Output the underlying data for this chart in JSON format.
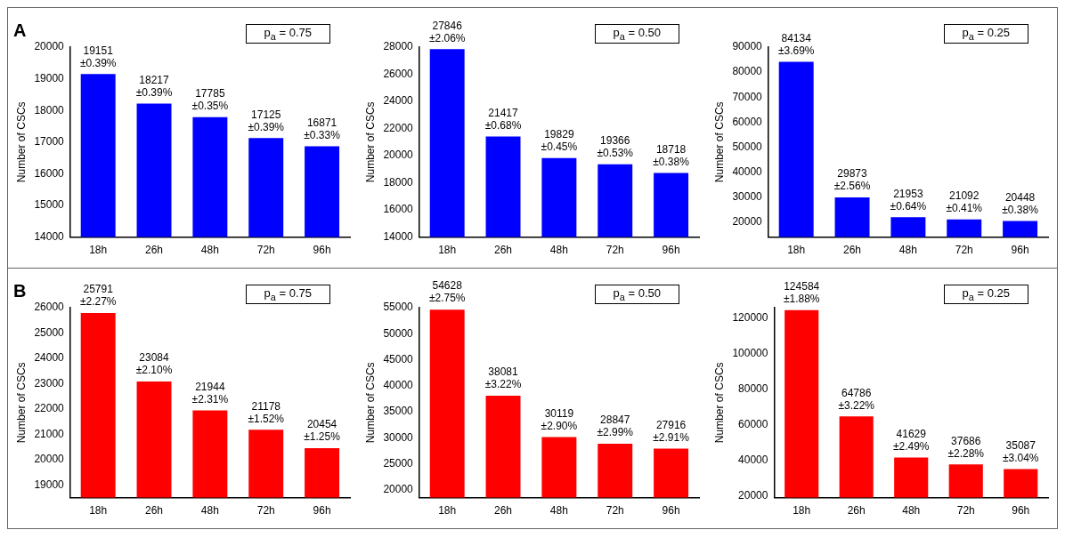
{
  "chart_data": [
    {
      "type": "bar",
      "title": "A",
      "ylabel": "Number of CSCs",
      "categories": [
        "18h",
        "26h",
        "48h",
        "72h",
        "96h"
      ],
      "values": [
        19151,
        18217,
        17785,
        17125,
        16871
      ],
      "color": "#0000ff",
      "ylim": [
        14000,
        20000
      ],
      "yticks": [
        14000,
        15000,
        16000,
        17000,
        18000,
        19000,
        20000
      ],
      "grid": false,
      "legend": false,
      "value_labels": [
        "19151\n±0.39%",
        "18217\n±0.39%",
        "17785\n±0.35%",
        "17125\n±0.39%",
        "16871\n±0.33%"
      ],
      "annotations": [
        "p$_{a}$ = 0.75"
      ]
    },
    {
      "type": "bar",
      "ylabel": "Number of CSCs",
      "categories": [
        "18h",
        "26h",
        "48h",
        "72h",
        "96h"
      ],
      "values": [
        27846,
        21417,
        19829,
        19366,
        18718
      ],
      "color": "#0000ff",
      "ylim": [
        14000,
        28000
      ],
      "yticks": [
        14000,
        16000,
        18000,
        20000,
        22000,
        24000,
        26000,
        28000
      ],
      "grid": false,
      "legend": false,
      "value_labels": [
        "27846\n±2.06%",
        "21417\n±0.68%",
        "19829\n±0.45%",
        "19366\n±0.53%",
        "18718\n±0.38%"
      ],
      "annotations": [
        "p$_{a}$ = 0.50"
      ]
    },
    {
      "type": "bar",
      "ylabel": "Number of CSCs",
      "categories": [
        "18h",
        "26h",
        "48h",
        "72h",
        "96h"
      ],
      "values": [
        84134,
        29873,
        21953,
        21092,
        20448
      ],
      "color": "#0000ff",
      "ylim": [
        14000,
        90000
      ],
      "yticks": [
        20000,
        30000,
        40000,
        50000,
        60000,
        70000,
        80000,
        90000
      ],
      "grid": false,
      "legend": false,
      "value_labels": [
        "84134\n±3.69%",
        "29873\n±2.56%",
        "21953\n±0.64%",
        "21092\n±0.41%",
        "20448\n±0.38%"
      ],
      "annotations": [
        "p$_{a}$ = 0.25"
      ]
    },
    {
      "type": "bar",
      "title": "B",
      "ylabel": "Number of CSCs",
      "categories": [
        "18h",
        "26h",
        "48h",
        "72h",
        "96h"
      ],
      "values": [
        25791,
        23084,
        21944,
        21178,
        20454
      ],
      "color": "#ff0000",
      "ylim": [
        18500,
        26000
      ],
      "yticks": [
        19000,
        20000,
        21000,
        22000,
        23000,
        24000,
        25000,
        26000
      ],
      "grid": false,
      "legend": false,
      "value_labels": [
        "25791\n±2.27%",
        "23084\n±2.10%",
        "21944\n±2.31%",
        "21178\n±1.52%",
        "20454\n±1.25%"
      ],
      "annotations": [
        "p$_{a}$ = 0.75"
      ]
    },
    {
      "type": "bar",
      "ylabel": "Number of CSCs",
      "categories": [
        "18h",
        "26h",
        "48h",
        "72h",
        "96h"
      ],
      "values": [
        54628,
        38081,
        30119,
        28847,
        27916
      ],
      "color": "#ff0000",
      "ylim": [
        18500,
        55000
      ],
      "yticks": [
        20000,
        25000,
        30000,
        35000,
        40000,
        45000,
        50000,
        55000
      ],
      "grid": false,
      "legend": false,
      "value_labels": [
        "54628\n±2.75%",
        "38081\n±3.22%",
        "30119\n±2.90%",
        "28847\n±2.99%",
        "27916\n±2.91%"
      ],
      "annotations": [
        "p$_{a}$ = 0.50"
      ]
    },
    {
      "type": "bar",
      "ylabel": "Number of CSCs",
      "categories": [
        "18h",
        "26h",
        "48h",
        "72h",
        "96h"
      ],
      "values": [
        124584,
        64786,
        41629,
        37686,
        35087
      ],
      "color": "#ff0000",
      "ylim": [
        19000,
        126000
      ],
      "yticks": [
        20000,
        40000,
        60000,
        80000,
        100000,
        120000
      ],
      "grid": false,
      "legend": false,
      "value_labels": [
        "124584\n±1.88%",
        "64786\n±3.22%",
        "41629\n±2.49%",
        "37686\n±2.28%",
        "35087\n±3.04%"
      ],
      "annotations": [
        "p$_{a}$ = 0.25"
      ]
    }
  ]
}
